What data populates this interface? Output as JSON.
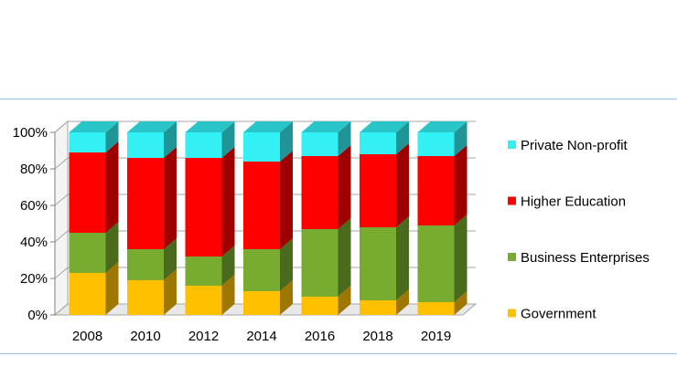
{
  "chart_data": {
    "type": "bar",
    "stacked": true,
    "percent": true,
    "three_d": true,
    "categories": [
      "2008",
      "2010",
      "2012",
      "2014",
      "2016",
      "2018",
      "2019"
    ],
    "series": [
      {
        "name": "Government",
        "color": "#ffc000",
        "values": [
          23,
          19,
          16,
          13,
          10,
          8,
          7
        ]
      },
      {
        "name": "Business Enterprises",
        "color": "#77ac30",
        "values": [
          22,
          17,
          16,
          23,
          37,
          40,
          42
        ]
      },
      {
        "name": "Higher Education",
        "color": "#ff0000",
        "values": [
          44,
          50,
          54,
          48,
          40,
          40,
          38
        ]
      },
      {
        "name": "Private Non-profit",
        "color": "#33f0f5",
        "values": [
          11,
          14,
          14,
          16,
          13,
          12,
          13
        ]
      }
    ],
    "y_ticks": [
      "0%",
      "20%",
      "40%",
      "60%",
      "80%",
      "100%"
    ],
    "ylim": [
      0,
      100
    ],
    "title": "",
    "xlabel": "",
    "ylabel": "",
    "grid": true,
    "legend_position": "right"
  }
}
